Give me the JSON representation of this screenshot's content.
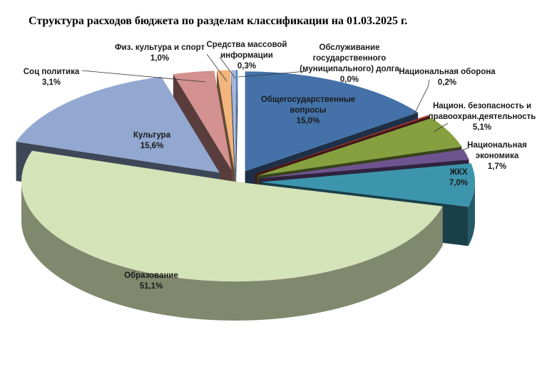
{
  "chart_data": {
    "type": "pie",
    "title": "Структура расходов бюджета по разделам классификации на 01.03.2025 г.",
    "slices": [
      {
        "name": "Общегосударственные вопросы",
        "label_lines": [
          "Общегосударственные",
          "вопросы"
        ],
        "value_label": "15,0%",
        "value": 15.0,
        "color": "#4472a8"
      },
      {
        "name": "Национальная оборона",
        "label_lines": [
          "Национальная оборона"
        ],
        "value_label": "0,2%",
        "value": 0.2,
        "color": "#a33a37"
      },
      {
        "name": "Национ. безопасность и правоохран.деятельность",
        "label_lines": [
          "Национ. безопасность и",
          "правоохран.деятельность"
        ],
        "value_label": "5,1%",
        "value": 5.1,
        "color": "#86a040"
      },
      {
        "name": "Национальная экономика",
        "label_lines": [
          "Национальная",
          "экономика"
        ],
        "value_label": "1,7%",
        "value": 1.7,
        "color": "#6e548f"
      },
      {
        "name": "ЖКХ",
        "label_lines": [
          "ЖКХ"
        ],
        "value_label": "7,0%",
        "value": 7.0,
        "color": "#3c95ad"
      },
      {
        "name": "Образование",
        "label_lines": [
          "Образование"
        ],
        "value_label": "51,1%",
        "value": 51.1,
        "color": "#d5e3b8"
      },
      {
        "name": "Культура",
        "label_lines": [
          "Культура"
        ],
        "value_label": "15,6%",
        "value": 15.6,
        "color": "#93a8d0"
      },
      {
        "name": "Соц политика",
        "label_lines": [
          "Соц политика"
        ],
        "value_label": "3,1%",
        "value": 3.1,
        "color": "#d39190"
      },
      {
        "name": "Физ. культура и спорт",
        "label_lines": [
          "Физ. культура и спорт"
        ],
        "value_label": "1,0%",
        "value": 1.0,
        "color": "#f2b57c"
      },
      {
        "name": "Средства массовой информации",
        "label_lines": [
          "Средства массовой",
          "информации"
        ],
        "value_label": "0,3%",
        "value": 0.3,
        "color": "#a3b3d8"
      },
      {
        "name": "Обслуживание государственного (муниципального) долга",
        "label_lines": [
          "Обслуживание",
          "государственного",
          "(муниципального) долга"
        ],
        "value_label": "0,0%",
        "value": 0.0,
        "color": "#5b87c2"
      }
    ],
    "legend": "none",
    "style": "3d-exploded-pie"
  }
}
